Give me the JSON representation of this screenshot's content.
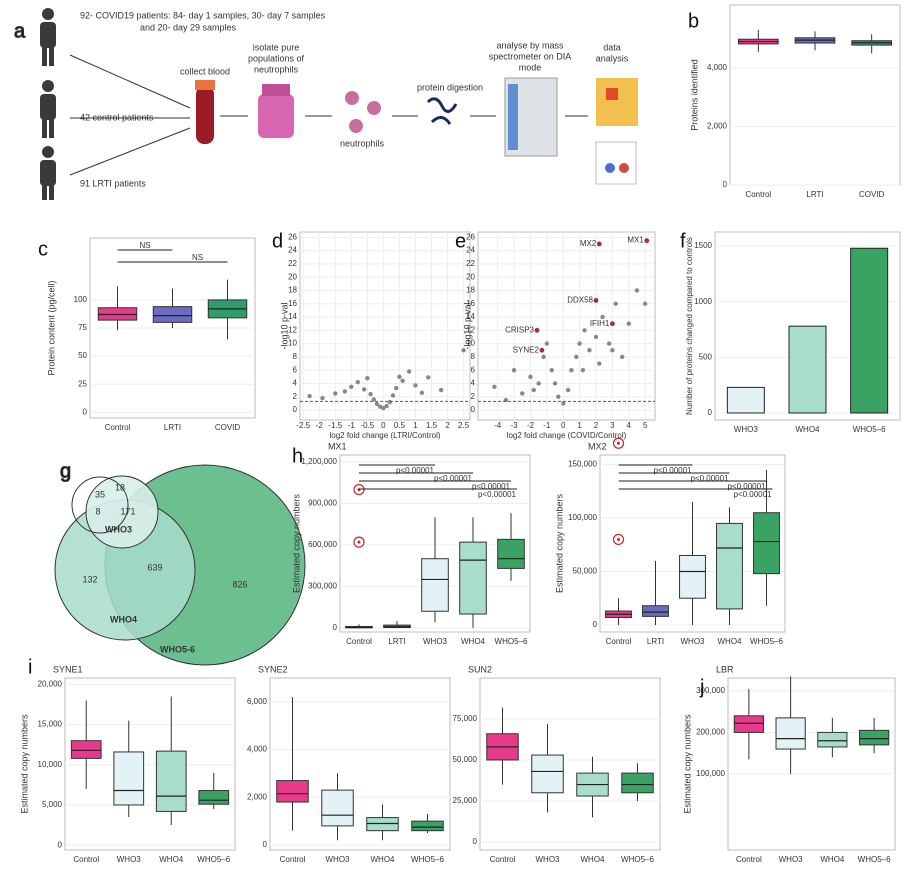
{
  "diagram": {
    "panel": "a",
    "cohorts": [
      [
        "92- COVID19 patients: 84- day 1 samples, 30- day 7 samples",
        "and 20- day 29 samples"
      ],
      [
        "42 control patients"
      ],
      [
        "91 LRTI patients"
      ]
    ],
    "steps": [
      [
        "collect blood"
      ],
      [
        "isolate pure",
        "populations of",
        "neutrophils"
      ],
      [
        "neutrophils"
      ],
      [
        "protein digestion"
      ],
      [
        "analyse by mass",
        "spectrometer on DIA",
        "mode"
      ],
      [
        "data",
        "analysis"
      ]
    ]
  },
  "venn": {
    "panel": "g",
    "counts": [
      35,
      18,
      8,
      171,
      639,
      132,
      826
    ],
    "labels": [
      "WHO3",
      "WHO4",
      "WHO5-6"
    ]
  },
  "chart_data": [
    {
      "type": "box",
      "panel": "b",
      "ylabel": "Proteins identified",
      "categories": [
        "Control",
        "LRTI",
        "COVID"
      ],
      "colors": [
        "#e8398a",
        "#6b6bbf",
        "#2e9c6b"
      ],
      "q1": [
        4820,
        4850,
        4780
      ],
      "median": [
        4900,
        4950,
        4860
      ],
      "q3": [
        4980,
        5030,
        4930
      ],
      "low": [
        4550,
        4600,
        4500
      ],
      "high": [
        5300,
        5250,
        5150
      ],
      "ylim": [
        0,
        6150
      ],
      "yticks": [
        0,
        {
          "value": 2000,
          "label": "2,000"
        },
        {
          "value": 4000,
          "label": "4,000"
        }
      ],
      "grid": true
    },
    {
      "type": "box",
      "panel": "c",
      "ylabel": "Protein content (pg/cell)",
      "categories": [
        "Control",
        "LRTI",
        "COVID"
      ],
      "colors": [
        "#e8398a",
        "#6b6bbf",
        "#2e9c6b"
      ],
      "q1": [
        82,
        80,
        84
      ],
      "median": [
        87,
        86,
        92
      ],
      "q3": [
        93,
        94,
        100
      ],
      "low": [
        73,
        75,
        65
      ],
      "high": [
        112,
        110,
        118
      ],
      "annotations": [
        "NS",
        "NS"
      ],
      "ylim": [
        -5,
        155
      ],
      "yticks": [
        0,
        25,
        50,
        75,
        100
      ],
      "grid": true
    },
    {
      "type": "scatter",
      "panel": "d",
      "xlabel": "log2 fold change (LTRI/Control)",
      "ylabel": "-log10 p-val",
      "x": [
        -2.3,
        -1.9,
        -1.5,
        -1.2,
        -1.0,
        -0.8,
        -0.6,
        -0.5,
        -0.4,
        -0.3,
        -0.2,
        -0.1,
        0,
        0.1,
        0.2,
        0.3,
        0.4,
        0.5,
        0.6,
        0.8,
        1.0,
        1.2,
        1.4,
        1.8,
        2.5
      ],
      "y": [
        2.1,
        1.8,
        2.5,
        2.8,
        3.5,
        4.2,
        3.1,
        4.8,
        2.4,
        1.6,
        0.9,
        0.5,
        0.3,
        0.6,
        1.2,
        2.2,
        3.3,
        5.0,
        4.4,
        5.8,
        3.7,
        2.6,
        4.9,
        3.0,
        9.0
      ],
      "color": "#888888",
      "threshold": 1.3,
      "highlighted": [],
      "xlim": [
        -2.6,
        2.7
      ],
      "xticks": [
        -2.5,
        -2,
        -1.5,
        -1,
        -0.5,
        0,
        0.5,
        1,
        1.5,
        2,
        2.5
      ],
      "ylim": [
        -1.5,
        26.8
      ],
      "yticks": [
        0,
        2,
        4,
        6,
        8,
        10,
        12,
        14,
        16,
        18,
        20,
        22,
        24,
        26
      ],
      "grid": true
    },
    {
      "type": "scatter",
      "panel": "e",
      "xlabel": "log2 fold change (COVID/Control)",
      "ylabel": "-log10 p-val",
      "x": [
        -4.2,
        -3.5,
        -3,
        -2.5,
        -2,
        -1.5,
        -1.2,
        -1,
        -0.7,
        -0.5,
        -0.3,
        0,
        0.3,
        0.5,
        0.8,
        1,
        1.3,
        1.6,
        2,
        2.4,
        2.8,
        3.2,
        3.6,
        4,
        4.5,
        5,
        -1.8,
        1.2,
        2.2,
        3
      ],
      "y": [
        3.5,
        1.5,
        6,
        2.5,
        5,
        4,
        8,
        10,
        6,
        4,
        2,
        1,
        3,
        6,
        8,
        10,
        12,
        9,
        11,
        14,
        10,
        16,
        8,
        13,
        18,
        16,
        3,
        6,
        7,
        9
      ],
      "color": "#888888",
      "threshold": 1.3,
      "highlighted": [
        {
          "name": "MX2",
          "x": 2.2,
          "y": 25
        },
        {
          "name": "MX1",
          "x": 5.1,
          "y": 25.5
        },
        {
          "name": "DDX58",
          "x": 2.0,
          "y": 16.5
        },
        {
          "name": "IFIH1",
          "x": 3.0,
          "y": 13
        },
        {
          "name": "CRISP3",
          "x": -1.6,
          "y": 12
        },
        {
          "name": "SYNE2",
          "x": -1.3,
          "y": 9
        }
      ],
      "xlim": [
        -5.2,
        5.6
      ],
      "xticks": [
        -4,
        -3,
        -2,
        -1,
        0,
        1,
        2,
        3,
        4,
        5
      ],
      "ylim": [
        -1.5,
        26.8
      ],
      "yticks": [
        0,
        2,
        4,
        6,
        8,
        10,
        12,
        14,
        16,
        18,
        20,
        22,
        24,
        26
      ],
      "grid": true
    },
    {
      "type": "bar",
      "panel": "f",
      "ylabel": "Number of proteins changed compared to controls",
      "categories": [
        "WHO3",
        "WHO4",
        "WHO5–6"
      ],
      "values": [
        230,
        780,
        1480
      ],
      "colors": [
        "#e3f2f5",
        "#a8dccb",
        "#3aa363"
      ],
      "ylim": [
        -63,
        1626
      ],
      "yticks": [
        0,
        500,
        1000,
        1500
      ],
      "grid": true
    },
    {
      "type": "box",
      "panel": "h",
      "title": "MX1",
      "ylabel": "Estimated copy numbers",
      "categories": [
        "Control",
        "LRTI",
        "WHO3",
        "WHO4",
        "WHO5–6"
      ],
      "colors": [
        "#e8398a",
        "#6b6bbf",
        "#e3f2f5",
        "#a8dccb",
        "#3aa363"
      ],
      "q1": [
        0,
        2000,
        120000,
        100000,
        430000
      ],
      "median": [
        3000,
        8000,
        350000,
        490000,
        500000
      ],
      "q3": [
        10000,
        20000,
        500000,
        620000,
        640000
      ],
      "low": [
        0,
        0,
        40000,
        0,
        340000
      ],
      "high": [
        25000,
        50000,
        800000,
        800000,
        830000
      ],
      "outliers": [
        1000000,
        620000
      ],
      "annotations": [
        "p<0.00001",
        "p<0.00001",
        "p<0.00001",
        "p<0.00001"
      ],
      "ylim": [
        -30000,
        1250000
      ],
      "yticks": [
        0,
        {
          "value": 300000,
          "label": "300,000"
        },
        {
          "value": 600000,
          "label": "600,000"
        },
        {
          "value": 900000,
          "label": "900,000"
        },
        {
          "value": 1200000,
          "label": "1,200,000"
        }
      ],
      "grid": true
    },
    {
      "type": "box",
      "title": "MX2",
      "ylabel": "Estimated copy numbers",
      "categories": [
        "Control",
        "LRTI",
        "WHO3",
        "WHO4",
        "WHO5–6"
      ],
      "colors": [
        "#e8398a",
        "#6b6bbf",
        "#e3f2f5",
        "#a8dccb",
        "#3aa363"
      ],
      "q1": [
        7000,
        8000,
        25000,
        15000,
        48000
      ],
      "median": [
        10000,
        12000,
        50000,
        72000,
        78000
      ],
      "q3": [
        13000,
        18000,
        65000,
        95000,
        105000
      ],
      "low": [
        0,
        0,
        0,
        0,
        18000
      ],
      "high": [
        25000,
        60000,
        115000,
        110000,
        145000
      ],
      "outliers": [
        170000,
        80000
      ],
      "annotations": [
        "p<0.00001",
        "p<0.00001",
        "p<0.00001",
        "p<0.00001"
      ],
      "ylim": [
        -6600,
        159000
      ],
      "yticks": [
        0,
        {
          "value": 50000,
          "label": "50,000"
        },
        {
          "value": 100000,
          "label": "100,000"
        },
        {
          "value": 150000,
          "label": "150,000"
        }
      ],
      "grid": true
    },
    {
      "type": "box",
      "panel": "i",
      "title": "SYNE1",
      "ylabel": "Estimated copy numbers",
      "categories": [
        "Control",
        "WHO3",
        "WHO4",
        "WHO5–6"
      ],
      "colors": [
        "#e8398a",
        "#e3f2f5",
        "#a8dccb",
        "#3aa363"
      ],
      "q1": [
        10800,
        5000,
        4200,
        5100
      ],
      "median": [
        11800,
        6800,
        6100,
        5600
      ],
      "q3": [
        13000,
        11600,
        11700,
        6800
      ],
      "low": [
        7000,
        3500,
        2500,
        4500
      ],
      "high": [
        18000,
        15500,
        18500,
        9000
      ],
      "ylim": [
        -600,
        20800
      ],
      "yticks": [
        0,
        {
          "value": 5000,
          "label": "5,000"
        },
        {
          "value": 10000,
          "label": "10,000"
        },
        {
          "value": 15000,
          "label": "15,000"
        },
        {
          "value": 20000,
          "label": "20,000"
        }
      ],
      "grid": true
    },
    {
      "type": "box",
      "title": "SYNE2",
      "categories": [
        "Control",
        "WHO3",
        "WHO4",
        "WHO5–6"
      ],
      "colors": [
        "#e8398a",
        "#e3f2f5",
        "#a8dccb",
        "#3aa363"
      ],
      "q1": [
        1800,
        800,
        600,
        600
      ],
      "median": [
        2150,
        1250,
        900,
        750
      ],
      "q3": [
        2700,
        2300,
        1150,
        1000
      ],
      "low": [
        600,
        200,
        200,
        500
      ],
      "high": [
        6200,
        3000,
        1700,
        1300
      ],
      "ylim": [
        -210,
        7000
      ],
      "yticks": [
        0,
        {
          "value": 2000,
          "label": "2,000"
        },
        {
          "value": 4000,
          "label": "4,000"
        },
        {
          "value": 6000,
          "label": "6,000"
        }
      ],
      "grid": true
    },
    {
      "type": "box",
      "title": "SUN2",
      "categories": [
        "Control",
        "WHO3",
        "WHO4",
        "WHO5–6"
      ],
      "colors": [
        "#e8398a",
        "#e3f2f5",
        "#a8dccb",
        "#3aa363"
      ],
      "q1": [
        50000,
        30000,
        28000,
        30000
      ],
      "median": [
        58000,
        43000,
        35000,
        35000
      ],
      "q3": [
        66000,
        53000,
        42000,
        42000
      ],
      "low": [
        35000,
        18000,
        15000,
        25000
      ],
      "high": [
        82000,
        72000,
        52000,
        48000
      ],
      "ylim": [
        -4900,
        100000
      ],
      "yticks": [
        0,
        {
          "value": 25000,
          "label": "25,000"
        },
        {
          "value": 50000,
          "label": "50,000"
        },
        {
          "value": 75000,
          "label": "75,000"
        }
      ],
      "grid": true
    },
    {
      "type": "box",
      "panel": "j",
      "title": "LBR",
      "ylabel": "Estimated copy numbers",
      "categories": [
        "Control",
        "WHO3",
        "WHO4",
        "WHO5–6"
      ],
      "colors": [
        "#e8398a",
        "#e3f2f5",
        "#a8dccb",
        "#3aa363"
      ],
      "q1": [
        200000,
        160000,
        165000,
        170000
      ],
      "median": [
        222000,
        185000,
        180000,
        185000
      ],
      "q3": [
        240000,
        235000,
        200000,
        205000
      ],
      "low": [
        135000,
        100000,
        140000,
        150000
      ],
      "high": [
        305000,
        335000,
        235000,
        235000
      ],
      "ylim": [
        -83000,
        331000
      ],
      "yticks": [
        {
          "value": 100000,
          "label": "100,000"
        },
        {
          "value": 200000,
          "label": "200,000"
        },
        {
          "value": 300000,
          "label": "300,000"
        }
      ],
      "grid": true
    }
  ]
}
